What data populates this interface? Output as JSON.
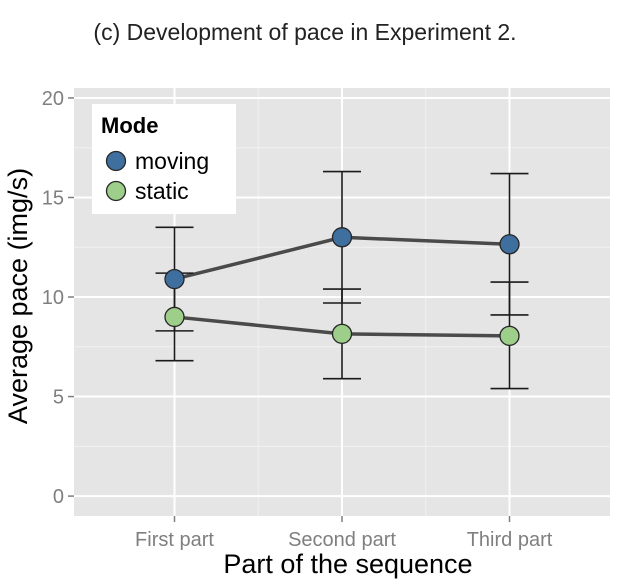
{
  "chart_data": {
    "type": "line",
    "title": "(c) Development of pace in Experiment 2.",
    "xlabel": "Part of the sequence",
    "ylabel": "Average pace (img/s)",
    "categories": [
      "First part",
      "Second part",
      "Third part"
    ],
    "ylim": [
      -1,
      20.5
    ],
    "yticks": [
      0,
      5,
      10,
      15,
      20
    ],
    "grid": true,
    "legend": {
      "title": "Mode",
      "position": "top-left",
      "entries": [
        "moving",
        "static"
      ]
    },
    "series": [
      {
        "name": "moving",
        "color": "#3f6f9f",
        "values": [
          10.9,
          13.0,
          12.65
        ],
        "err_low": [
          8.3,
          9.7,
          9.1
        ],
        "err_high": [
          13.5,
          16.3,
          16.2
        ]
      },
      {
        "name": "static",
        "color": "#9ecf8a",
        "values": [
          9.0,
          8.15,
          8.05
        ],
        "err_low": [
          6.8,
          5.9,
          5.4
        ],
        "err_high": [
          11.2,
          10.4,
          10.75
        ]
      }
    ]
  }
}
